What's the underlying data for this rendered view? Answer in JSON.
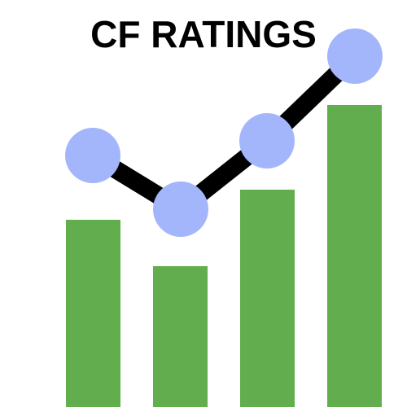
{
  "title": "CF RATINGS"
}
